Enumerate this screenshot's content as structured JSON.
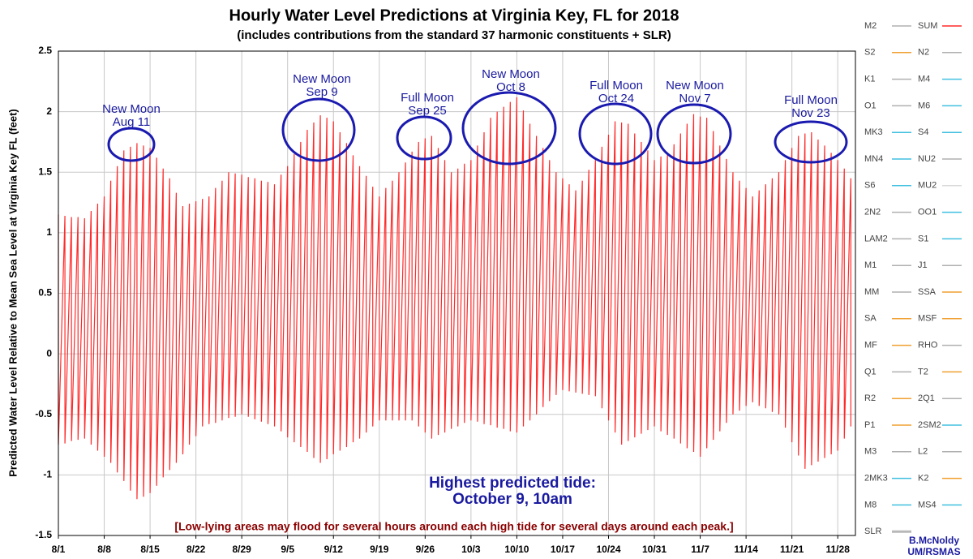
{
  "chart_data": {
    "type": "line",
    "title": "Hourly Water Level Predictions at Virginia Key, FL for 2018",
    "subtitle": "(includes contributions from the standard 37 harmonic constituents + SLR)",
    "y_label": "Predicted Water Level Relative to Mean Sea Level at Virginia Key FL (feet)",
    "xlim": [
      0,
      121.7
    ],
    "xticks": [
      {
        "value": 0,
        "label": "8/1"
      },
      {
        "value": 7,
        "label": "8/8"
      },
      {
        "value": 14,
        "label": "8/15"
      },
      {
        "value": 21,
        "label": "8/22"
      },
      {
        "value": 28,
        "label": "8/29"
      },
      {
        "value": 35,
        "label": "9/5"
      },
      {
        "value": 42,
        "label": "9/12"
      },
      {
        "value": 49,
        "label": "9/19"
      },
      {
        "value": 56,
        "label": "9/26"
      },
      {
        "value": 63,
        "label": "10/3"
      },
      {
        "value": 70,
        "label": "10/10"
      },
      {
        "value": 77,
        "label": "10/17"
      },
      {
        "value": 84,
        "label": "10/24"
      },
      {
        "value": 91,
        "label": "10/31"
      },
      {
        "value": 98,
        "label": "11/7"
      },
      {
        "value": 105,
        "label": "11/14"
      },
      {
        "value": 112,
        "label": "11/21"
      },
      {
        "value": 119,
        "label": "11/28"
      }
    ],
    "ylim": [
      -1.5,
      2.5
    ],
    "yticks": [
      -1.5,
      -1,
      -0.5,
      0,
      0.5,
      1,
      1.5,
      2,
      2.5
    ],
    "grid": true,
    "series": [
      {
        "name": "SUM",
        "color": "#ff2a2a",
        "x": [
          0,
          1,
          2,
          3,
          4,
          5,
          6,
          7,
          8,
          9,
          10,
          11,
          12,
          13,
          14,
          15,
          16,
          17,
          18,
          19,
          20,
          21,
          22,
          23,
          24,
          25,
          26,
          27,
          28,
          29,
          30,
          31,
          32,
          33,
          34,
          35,
          36,
          37,
          38,
          39,
          40,
          41,
          42,
          43,
          44,
          45,
          46,
          47,
          48,
          49,
          50,
          51,
          52,
          53,
          54,
          55,
          56,
          57,
          58,
          59,
          60,
          61,
          62,
          63,
          64,
          65,
          66,
          67,
          68,
          69,
          70,
          71,
          72,
          73,
          74,
          75,
          76,
          77,
          78,
          79,
          80,
          81,
          82,
          83,
          84,
          85,
          86,
          87,
          88,
          89,
          90,
          91,
          92,
          93,
          94,
          95,
          96,
          97,
          98,
          99,
          100,
          101,
          102,
          103,
          104,
          105,
          106,
          107,
          108,
          109,
          110,
          111,
          112,
          113,
          114,
          115,
          116,
          117,
          118,
          119,
          120,
          121
        ],
        "high": [
          1.15,
          1.14,
          1.13,
          1.13,
          1.12,
          1.18,
          1.24,
          1.3,
          1.43,
          1.55,
          1.68,
          1.71,
          1.74,
          1.72,
          1.7,
          1.62,
          1.53,
          1.45,
          1.33,
          1.22,
          1.24,
          1.26,
          1.28,
          1.3,
          1.37,
          1.43,
          1.5,
          1.49,
          1.48,
          1.46,
          1.45,
          1.43,
          1.42,
          1.4,
          1.48,
          1.55,
          1.65,
          1.75,
          1.85,
          1.91,
          1.97,
          1.95,
          1.92,
          1.83,
          1.74,
          1.64,
          1.55,
          1.47,
          1.38,
          1.3,
          1.37,
          1.43,
          1.5,
          1.58,
          1.67,
          1.75,
          1.78,
          1.8,
          1.7,
          1.6,
          1.5,
          1.53,
          1.57,
          1.6,
          1.72,
          1.83,
          1.95,
          2.0,
          2.04,
          2.08,
          2.12,
          2.01,
          1.9,
          1.8,
          1.7,
          1.6,
          1.5,
          1.45,
          1.4,
          1.35,
          1.43,
          1.52,
          1.6,
          1.71,
          1.81,
          1.92,
          1.91,
          1.9,
          1.82,
          1.75,
          1.68,
          1.6,
          1.63,
          1.65,
          1.73,
          1.82,
          1.9,
          1.98,
          1.96,
          1.95,
          1.84,
          1.72,
          1.61,
          1.5,
          1.43,
          1.37,
          1.3,
          1.35,
          1.4,
          1.45,
          1.5,
          1.6,
          1.7,
          1.8,
          1.82,
          1.83,
          1.77,
          1.72,
          1.66,
          1.6,
          1.53,
          1.45
        ],
        "low": [
          -0.75,
          -0.74,
          -0.72,
          -0.71,
          -0.7,
          -0.75,
          -0.8,
          -0.85,
          -0.9,
          -0.98,
          -1.05,
          -1.13,
          -1.2,
          -1.18,
          -1.15,
          -1.09,
          -1.02,
          -0.96,
          -0.9,
          -0.83,
          -0.75,
          -0.68,
          -0.6,
          -0.58,
          -0.57,
          -0.55,
          -0.53,
          -0.52,
          -0.5,
          -0.52,
          -0.54,
          -0.56,
          -0.58,
          -0.6,
          -0.64,
          -0.69,
          -0.73,
          -0.77,
          -0.81,
          -0.86,
          -0.9,
          -0.87,
          -0.83,
          -0.8,
          -0.77,
          -0.73,
          -0.7,
          -0.65,
          -0.6,
          -0.55,
          -0.55,
          -0.55,
          -0.55,
          -0.55,
          -0.55,
          -0.6,
          -0.65,
          -0.7,
          -0.67,
          -0.65,
          -0.62,
          -0.6,
          -0.57,
          -0.55,
          -0.56,
          -0.58,
          -0.59,
          -0.61,
          -0.62,
          -0.64,
          -0.65,
          -0.6,
          -0.55,
          -0.5,
          -0.44,
          -0.39,
          -0.34,
          -0.3,
          -0.31,
          -0.32,
          -0.33,
          -0.34,
          -0.35,
          -0.45,
          -0.55,
          -0.65,
          -0.75,
          -0.72,
          -0.69,
          -0.66,
          -0.63,
          -0.6,
          -0.64,
          -0.67,
          -0.7,
          -0.74,
          -0.78,
          -0.81,
          -0.85,
          -0.78,
          -0.71,
          -0.64,
          -0.57,
          -0.5,
          -0.47,
          -0.43,
          -0.4,
          -0.43,
          -0.45,
          -0.48,
          -0.5,
          -0.61,
          -0.73,
          -0.84,
          -0.95,
          -0.92,
          -0.89,
          -0.86,
          -0.83,
          -0.8,
          -0.7,
          -0.6
        ]
      }
    ],
    "legend": [
      {
        "name": "M2",
        "color": "#b0b0b0"
      },
      {
        "name": "SUM",
        "color": "#ff2a2a"
      },
      {
        "name": "S2",
        "color": "#f0a030"
      },
      {
        "name": "N2",
        "color": "#b0b0b0"
      },
      {
        "name": "K1",
        "color": "#b0b0b0"
      },
      {
        "name": "M4",
        "color": "#40c0e0"
      },
      {
        "name": "O1",
        "color": "#b0b0b0"
      },
      {
        "name": "M6",
        "color": "#40c0e0"
      },
      {
        "name": "MK3",
        "color": "#40c0e0"
      },
      {
        "name": "S4",
        "color": "#40c0e0"
      },
      {
        "name": "MN4",
        "color": "#40c0e0"
      },
      {
        "name": "NU2",
        "color": "#b0b0b0"
      },
      {
        "name": "S6",
        "color": "#40c0e0"
      },
      {
        "name": "MU2",
        "color": "#d8d8d8"
      },
      {
        "name": "2N2",
        "color": "#b0b0b0"
      },
      {
        "name": "OO1",
        "color": "#40c0e0"
      },
      {
        "name": "LAM2",
        "color": "#b0b0b0"
      },
      {
        "name": "S1",
        "color": "#40c0e0"
      },
      {
        "name": "M1",
        "color": "#b0b0b0"
      },
      {
        "name": "J1",
        "color": "#b0b0b0"
      },
      {
        "name": "MM",
        "color": "#b0b0b0"
      },
      {
        "name": "SSA",
        "color": "#f0a030"
      },
      {
        "name": "SA",
        "color": "#f0a030"
      },
      {
        "name": "MSF",
        "color": "#f0a030"
      },
      {
        "name": "MF",
        "color": "#f0a030"
      },
      {
        "name": "RHO",
        "color": "#b0b0b0"
      },
      {
        "name": "Q1",
        "color": "#b0b0b0"
      },
      {
        "name": "T2",
        "color": "#f0a030"
      },
      {
        "name": "R2",
        "color": "#f0a030"
      },
      {
        "name": "2Q1",
        "color": "#b0b0b0"
      },
      {
        "name": "P1",
        "color": "#f0a030"
      },
      {
        "name": "2SM2",
        "color": "#40c0e0"
      },
      {
        "name": "M3",
        "color": "#b0b0b0"
      },
      {
        "name": "L2",
        "color": "#b0b0b0"
      },
      {
        "name": "2MK3",
        "color": "#40c0e0"
      },
      {
        "name": "K2",
        "color": "#f0a030"
      },
      {
        "name": "M8",
        "color": "#40c0e0"
      },
      {
        "name": "MS4",
        "color": "#40c0e0"
      },
      {
        "name": "SLR",
        "color": "#b8b8b8"
      }
    ],
    "moon_annotations": [
      [
        "New Moon",
        "Aug 11"
      ],
      [
        "New Moon",
        "Sep 9"
      ],
      [
        "Full Moon",
        "Sep 25"
      ],
      [
        "New Moon",
        "Oct 8"
      ],
      [
        "Full Moon",
        "Oct 24"
      ],
      [
        "New Moon",
        "Nov 7"
      ],
      [
        "Full Moon",
        "Nov 23"
      ]
    ],
    "highest_tide": [
      "Highest predicted tide:",
      "October 9, 10am"
    ],
    "note": "[Low-lying areas may flood for several hours around each high tide for several days around each peak.]",
    "credit": [
      "B.McNoldy",
      "UM/RSMAS"
    ]
  }
}
